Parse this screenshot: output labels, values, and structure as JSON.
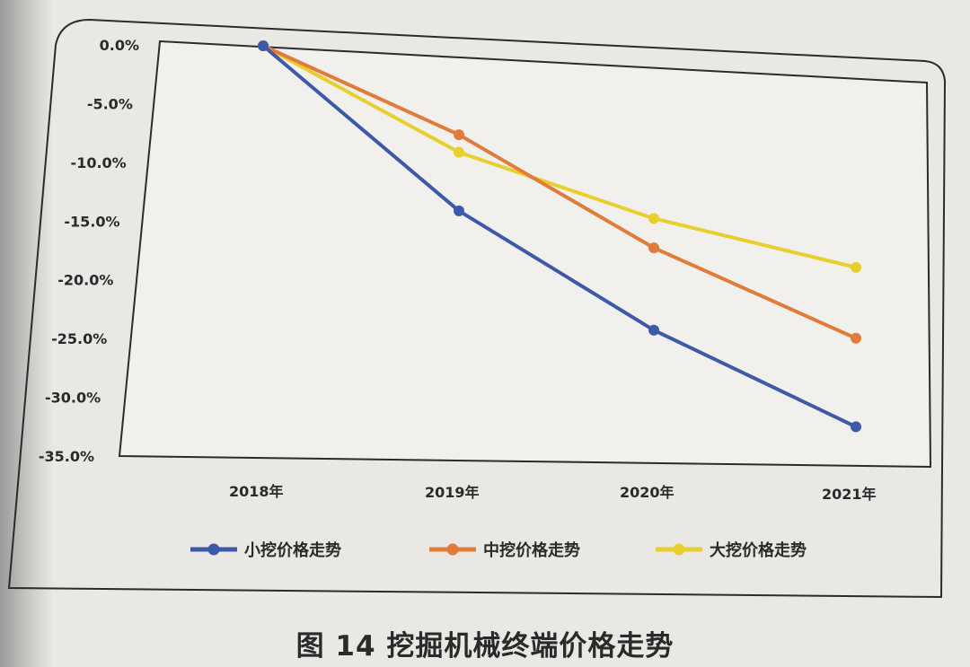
{
  "figure": {
    "caption": "图 14 挖掘机械终端价格走势"
  },
  "chart_data": {
    "type": "line",
    "title": "挖掘机械终端价格走势",
    "figure_number": "图 14",
    "categories": [
      "2018年",
      "2019年",
      "2020年",
      "2021年"
    ],
    "series": [
      {
        "name": "小挖价格走势",
        "color": "#3d5aa8",
        "values": [
          0.0,
          -14.0,
          -24.0,
          -32.0
        ]
      },
      {
        "name": "中挖价格走势",
        "color": "#e07b39",
        "values": [
          0.0,
          -7.5,
          -17.0,
          -24.5
        ]
      },
      {
        "name": "大挖价格走势",
        "color": "#e8cf2e",
        "values": [
          0.0,
          -9.0,
          -14.5,
          -18.5
        ]
      }
    ],
    "yticks": [
      "0.0%",
      "-5.0%",
      "-10.0%",
      "-15.0%",
      "-20.0%",
      "-25.0%",
      "-30.0%",
      "-35.0%"
    ],
    "ylim": [
      -35,
      0
    ],
    "xlabel": "",
    "ylabel": "",
    "grid": false,
    "legend_position": "bottom"
  }
}
